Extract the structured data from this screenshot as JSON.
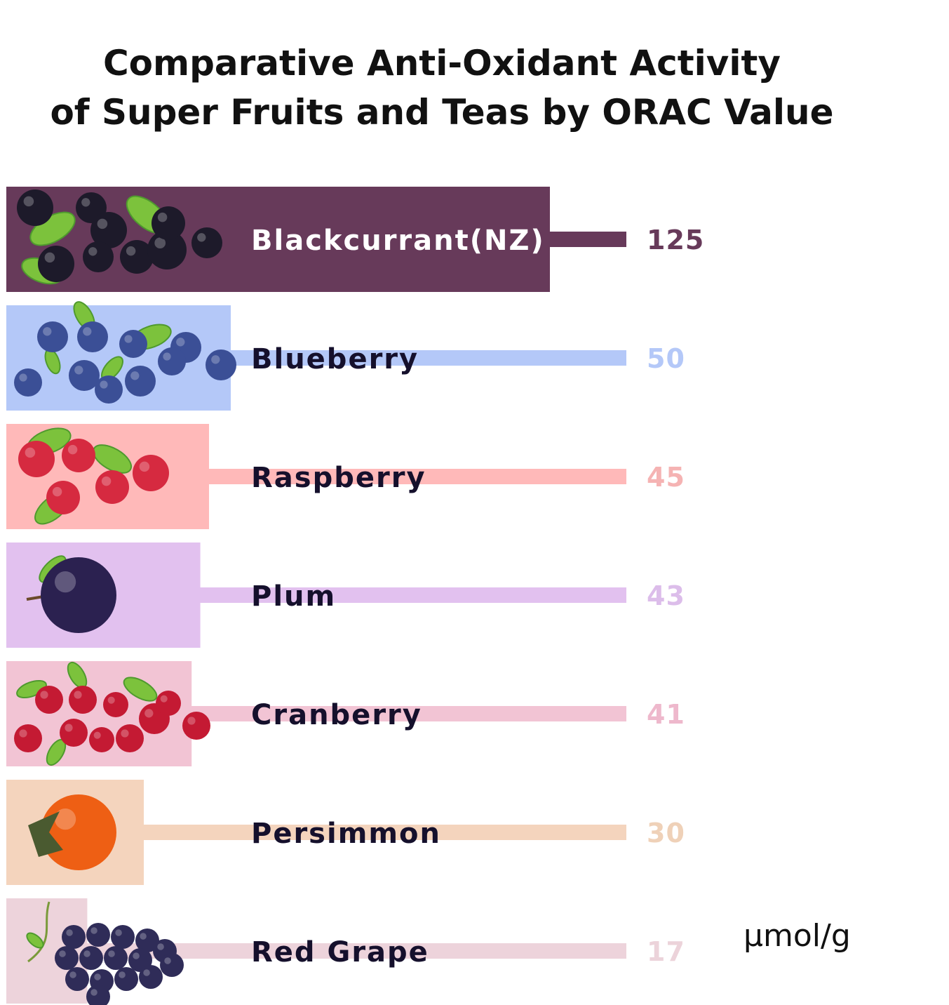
{
  "title": {
    "line1": "Comparative Anti-Oxidant Activity",
    "line2": "of Super Fruits and Teas by ORAC Value"
  },
  "unit": "μmol/g",
  "chart_data": {
    "type": "bar",
    "orientation": "horizontal",
    "categories": [
      "Blackcurrant(NZ)",
      "Blueberry",
      "Raspberry",
      "Plum",
      "Cranberry",
      "Persimmon",
      "Red Grape"
    ],
    "values": [
      125,
      50,
      45,
      43,
      41,
      30,
      17
    ],
    "value_labels": [
      "125",
      "50",
      "45",
      "43",
      "41",
      "30",
      "17"
    ],
    "colors": [
      "#673a5a",
      "#b4c8f8",
      "#ffb9b9",
      "#e2c1ef",
      "#f2c4d4",
      "#f4d4bd",
      "#edd3db"
    ],
    "value_label_colors": [
      "#673a5a",
      "#b4c8f8",
      "#f5b3b3",
      "#dcbdea",
      "#eeb8cc",
      "#efd1b8",
      "#ecd3da"
    ],
    "category_label_colors": [
      "#ffffff",
      "#15102c",
      "#15102c",
      "#15102c",
      "#15102c",
      "#15102c",
      "#15102c"
    ],
    "icons": [
      "blackcurrant-icon",
      "blueberry-icon",
      "raspberry-icon",
      "plum-icon",
      "cranberry-icon",
      "persimmon-icon",
      "red-grape-icon"
    ],
    "xlim": [
      0,
      125
    ],
    "grid": false,
    "legend": "none"
  }
}
